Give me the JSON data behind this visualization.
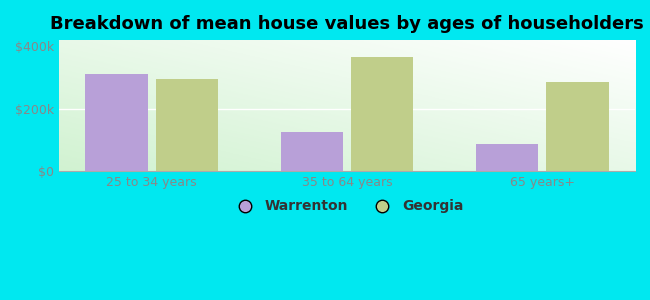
{
  "title": "Breakdown of mean house values by ages of householders",
  "categories": [
    "25 to 34 years",
    "35 to 64 years",
    "65 years+"
  ],
  "warrenton_values": [
    310000,
    125000,
    85000
  ],
  "georgia_values": [
    295000,
    365000,
    285000
  ],
  "warrenton_color": "#b8a0d8",
  "georgia_color": "#c0ce8a",
  "background_color": "#00e8f0",
  "ylim": [
    0,
    420000
  ],
  "yticks": [
    0,
    200000,
    400000
  ],
  "ytick_labels": [
    "$0",
    "$200k",
    "$400k"
  ],
  "legend_labels": [
    "Warrenton",
    "Georgia"
  ],
  "bar_width": 0.32,
  "title_fontsize": 13,
  "tick_fontsize": 9,
  "legend_fontsize": 10,
  "tick_color": "#888888",
  "spine_color": "#aaaaaa"
}
